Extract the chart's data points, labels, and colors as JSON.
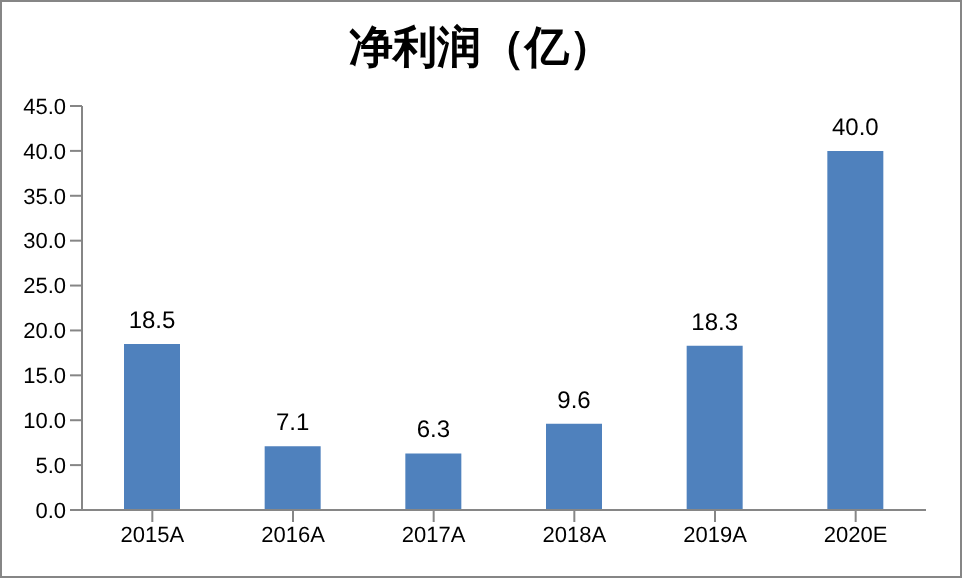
{
  "chart_data": {
    "type": "bar",
    "title": "净利润（亿）",
    "categories": [
      "2015A",
      "2016A",
      "2017A",
      "2018A",
      "2019A",
      "2020E"
    ],
    "values": [
      18.5,
      7.1,
      6.3,
      9.6,
      18.3,
      40
    ],
    "value_labels": [
      "18.5",
      "7.1",
      "6.3",
      "9.6",
      "18.3",
      "40.0"
    ],
    "color": "#4f81bd",
    "ylim": [
      0,
      45
    ],
    "yticks": [
      {
        "value": 0,
        "label": "0.0"
      },
      {
        "value": 5,
        "label": "5.0"
      },
      {
        "value": 10,
        "label": "10.0"
      },
      {
        "value": 15,
        "label": "15.0"
      },
      {
        "value": 20,
        "label": "20.0"
      },
      {
        "value": 25,
        "label": "25.0"
      },
      {
        "value": 30,
        "label": "30.0"
      },
      {
        "value": 35,
        "label": "35.0"
      },
      {
        "value": 40,
        "label": "40.0"
      },
      {
        "value": 45,
        "label": "45.0"
      }
    ]
  }
}
